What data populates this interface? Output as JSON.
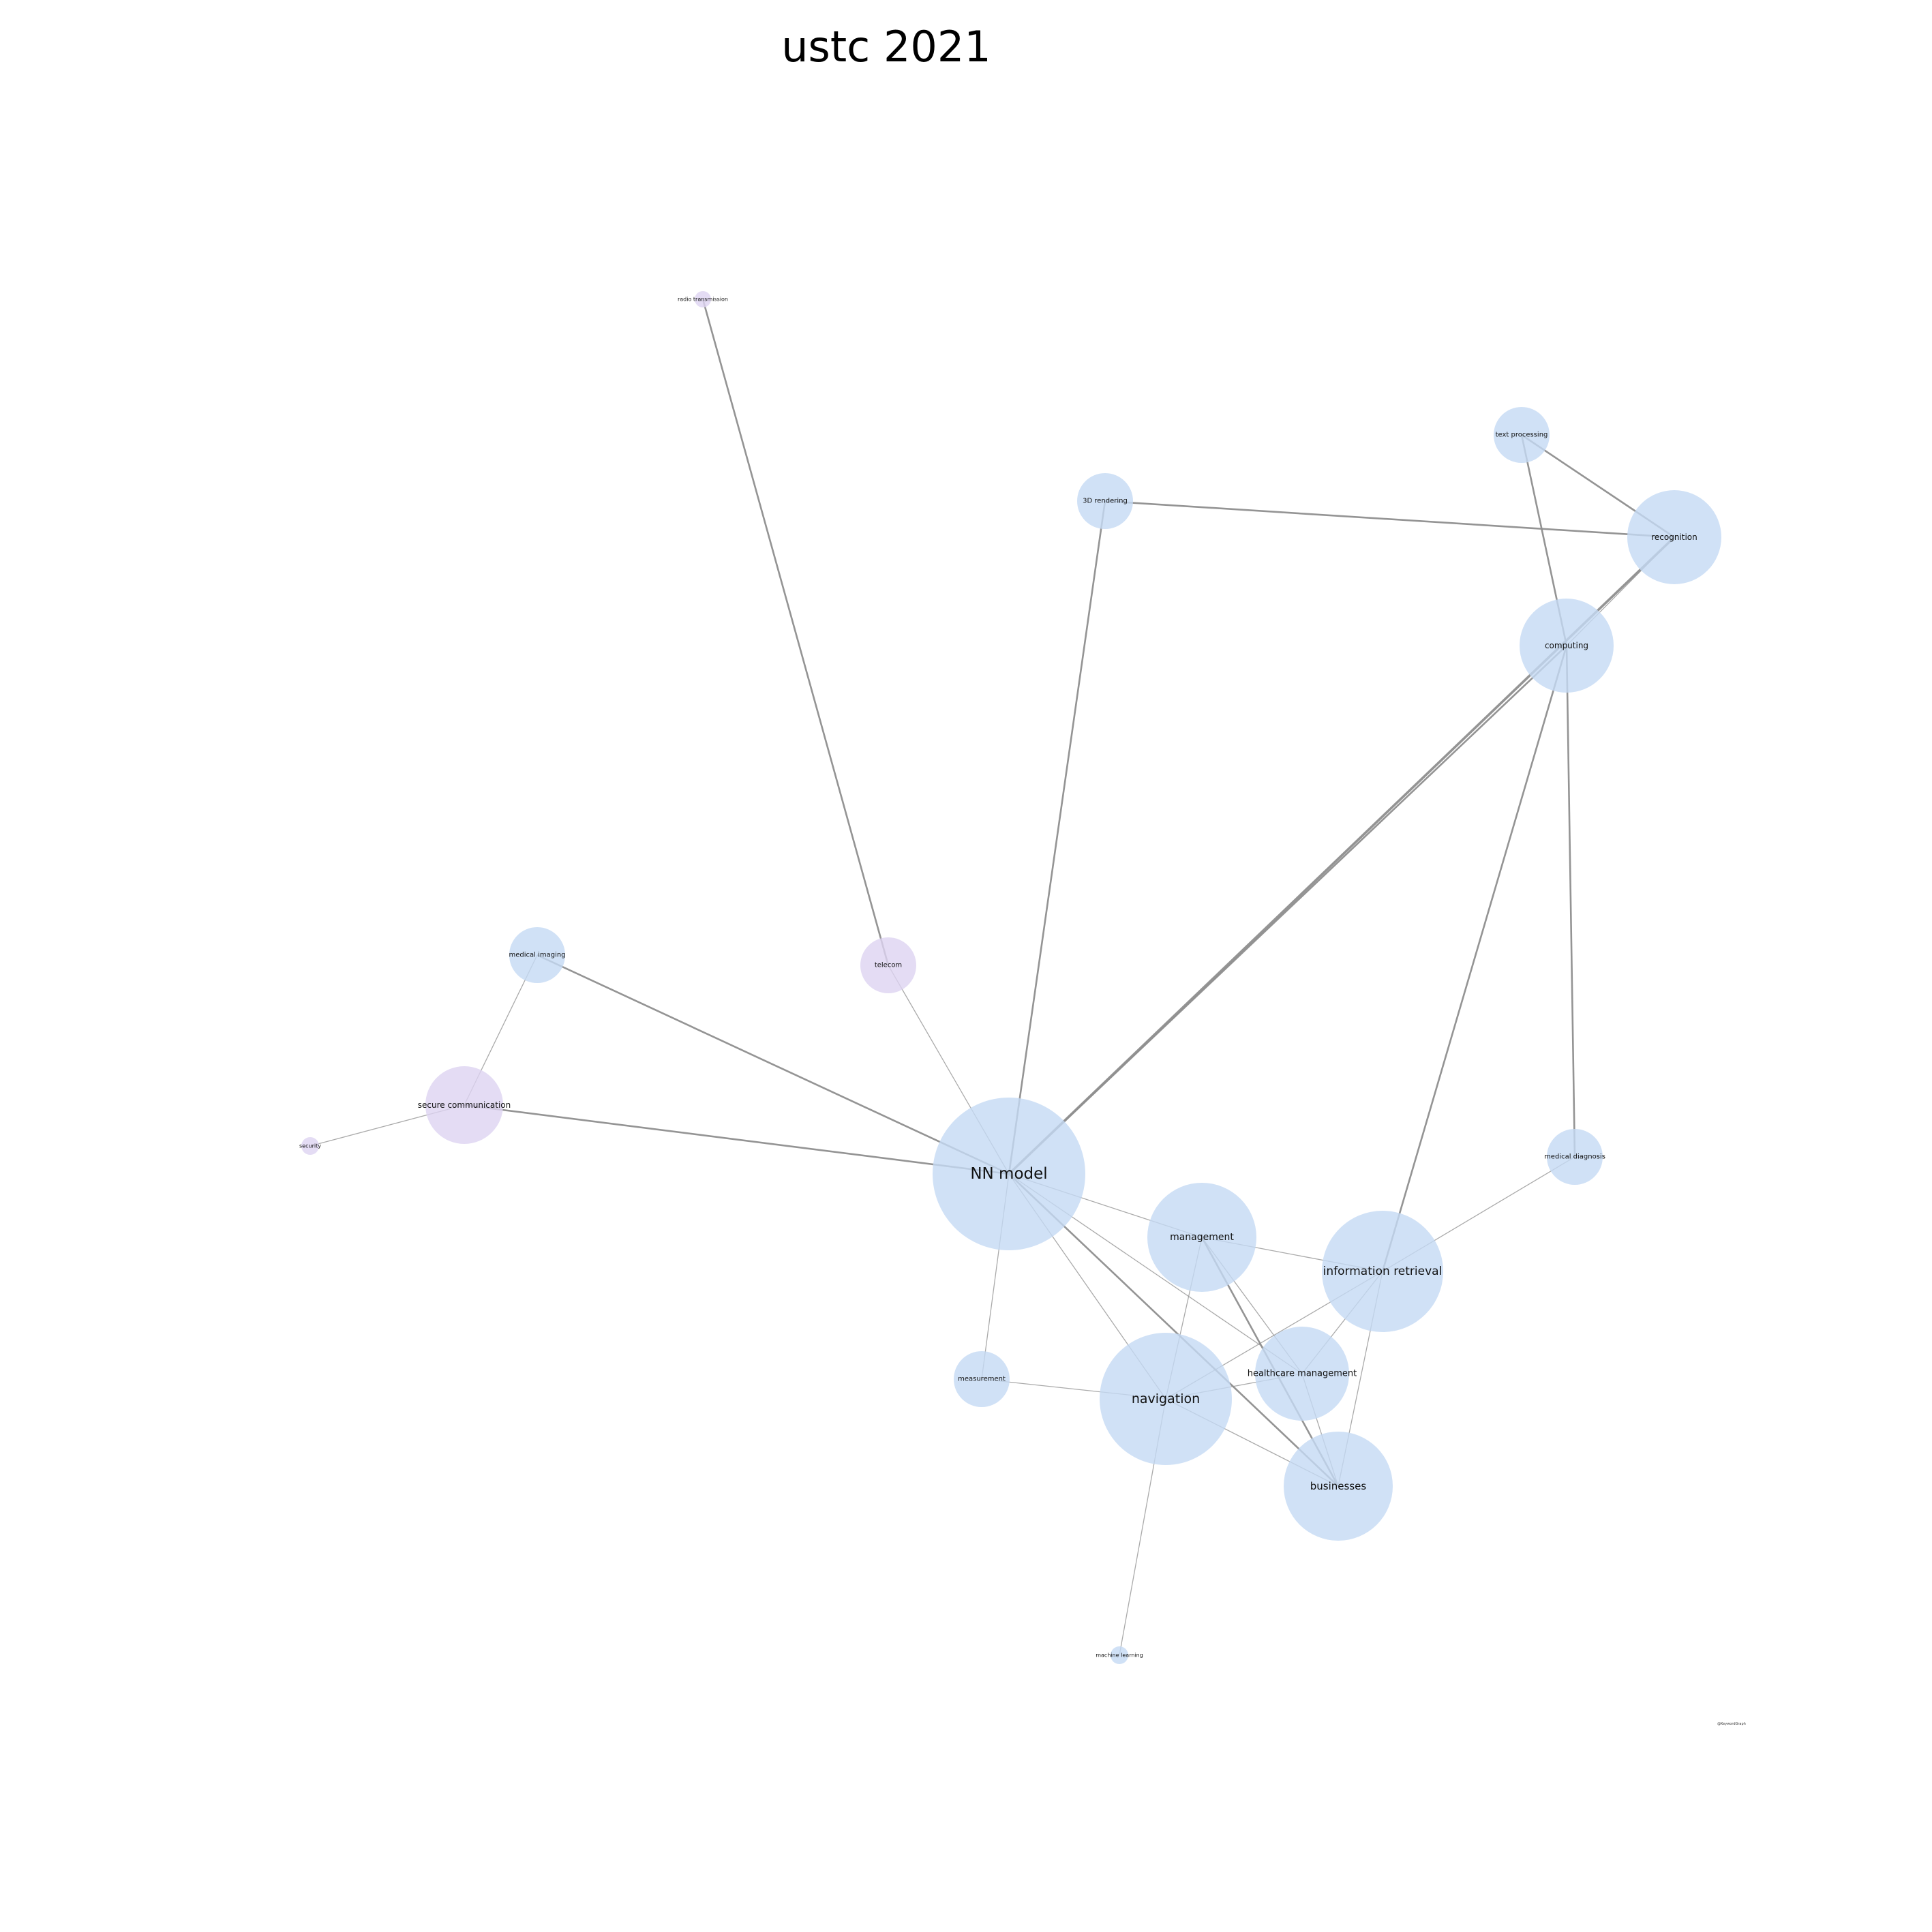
{
  "title": "ustc 2021",
  "watermark": "@KeywordGraph",
  "colors": {
    "blue_node": "#c4daf4",
    "purple_node": "#ddd3f1",
    "edge": "#8e8e8e",
    "background": "#ffffff"
  },
  "nodes": [
    {
      "id": "nn-model",
      "label": "NN model",
      "group": "blue"
    },
    {
      "id": "navigation",
      "label": "navigation",
      "group": "blue"
    },
    {
      "id": "information-retrieval",
      "label": "information retrieval",
      "group": "blue"
    },
    {
      "id": "businesses",
      "label": "businesses",
      "group": "blue"
    },
    {
      "id": "management",
      "label": "management",
      "group": "blue"
    },
    {
      "id": "healthcare-management",
      "label": "healthcare management",
      "group": "blue"
    },
    {
      "id": "recognition",
      "label": "recognition",
      "group": "blue"
    },
    {
      "id": "computing",
      "label": "computing",
      "group": "blue"
    },
    {
      "id": "secure-communication",
      "label": "secure communication",
      "group": "purple"
    },
    {
      "id": "medical-diagnosis",
      "label": "medical diagnosis",
      "group": "blue"
    },
    {
      "id": "medical-imaging",
      "label": "medical imaging",
      "group": "blue"
    },
    {
      "id": "telecom",
      "label": "telecom",
      "group": "purple"
    },
    {
      "id": "3d-rendering",
      "label": "3D rendering",
      "group": "blue"
    },
    {
      "id": "text-processing",
      "label": "text processing",
      "group": "blue"
    },
    {
      "id": "measurement",
      "label": "measurement",
      "group": "blue"
    },
    {
      "id": "radio-transmission",
      "label": "radio transmission",
      "group": "purple"
    },
    {
      "id": "security",
      "label": "security",
      "group": "purple"
    },
    {
      "id": "machine-learning",
      "label": "machine learning",
      "group": "blue"
    }
  ],
  "edges": [
    {
      "source": "radio-transmission",
      "target": "telecom",
      "weight": 2
    },
    {
      "source": "telecom",
      "target": "nn-model",
      "weight": 1
    },
    {
      "source": "3d-rendering",
      "target": "recognition",
      "weight": 2
    },
    {
      "source": "3d-rendering",
      "target": "nn-model",
      "weight": 2
    },
    {
      "source": "text-processing",
      "target": "recognition",
      "weight": 2
    },
    {
      "source": "text-processing",
      "target": "computing",
      "weight": 2
    },
    {
      "source": "recognition",
      "target": "nn-model",
      "weight": 3
    },
    {
      "source": "recognition",
      "target": "computing",
      "weight": 1
    },
    {
      "source": "computing",
      "target": "nn-model",
      "weight": 2
    },
    {
      "source": "computing",
      "target": "information-retrieval",
      "weight": 2
    },
    {
      "source": "computing",
      "target": "medical-diagnosis",
      "weight": 2
    },
    {
      "source": "medical-imaging",
      "target": "nn-model",
      "weight": 2
    },
    {
      "source": "medical-imaging",
      "target": "secure-communication",
      "weight": 1
    },
    {
      "source": "secure-communication",
      "target": "nn-model",
      "weight": 2
    },
    {
      "source": "secure-communication",
      "target": "security",
      "weight": 1
    },
    {
      "source": "nn-model",
      "target": "management",
      "weight": 1
    },
    {
      "source": "nn-model",
      "target": "navigation",
      "weight": 1
    },
    {
      "source": "nn-model",
      "target": "businesses",
      "weight": 2
    },
    {
      "source": "nn-model",
      "target": "healthcare-management",
      "weight": 1
    },
    {
      "source": "nn-model",
      "target": "measurement",
      "weight": 1
    },
    {
      "source": "management",
      "target": "information-retrieval",
      "weight": 1
    },
    {
      "source": "management",
      "target": "navigation",
      "weight": 1
    },
    {
      "source": "management",
      "target": "businesses",
      "weight": 2
    },
    {
      "source": "management",
      "target": "healthcare-management",
      "weight": 1
    },
    {
      "source": "information-retrieval",
      "target": "navigation",
      "weight": 1
    },
    {
      "source": "information-retrieval",
      "target": "businesses",
      "weight": 1
    },
    {
      "source": "information-retrieval",
      "target": "medical-diagnosis",
      "weight": 1
    },
    {
      "source": "information-retrieval",
      "target": "healthcare-management",
      "weight": 1
    },
    {
      "source": "healthcare-management",
      "target": "navigation",
      "weight": 1
    },
    {
      "source": "healthcare-management",
      "target": "businesses",
      "weight": 1
    },
    {
      "source": "navigation",
      "target": "businesses",
      "weight": 1
    },
    {
      "source": "navigation",
      "target": "measurement",
      "weight": 1
    },
    {
      "source": "navigation",
      "target": "machine-learning",
      "weight": 1
    }
  ]
}
